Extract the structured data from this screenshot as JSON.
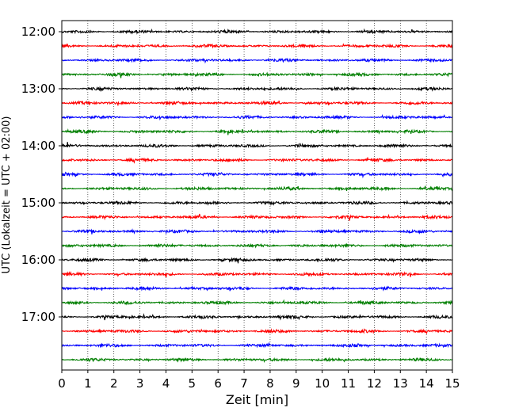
{
  "chart_data": {
    "type": "line",
    "subtype": "helicorder-seismogram",
    "xlabel": "Zeit  [min]",
    "ylabel": "UTC (Lokalzeit = UTC + 02:00)",
    "xlim": [
      0,
      15
    ],
    "x_ticks": [
      0,
      1,
      2,
      3,
      4,
      5,
      6,
      7,
      8,
      9,
      10,
      11,
      12,
      13,
      14,
      15
    ],
    "x_tick_labels": [
      "0",
      "1",
      "2",
      "3",
      "4",
      "5",
      "6",
      "7",
      "8",
      "9",
      "10",
      "11",
      "12",
      "13",
      "14",
      "15"
    ],
    "y_tick_labels": [
      "12:00",
      "13:00",
      "14:00",
      "15:00",
      "16:00",
      "17:00"
    ],
    "grid": "vertical-dotted",
    "trace_minutes": 15,
    "trace_count": 24,
    "trace_colors": [
      "#000000",
      "#ff0000",
      "#0000ff",
      "#007f00"
    ]
  }
}
